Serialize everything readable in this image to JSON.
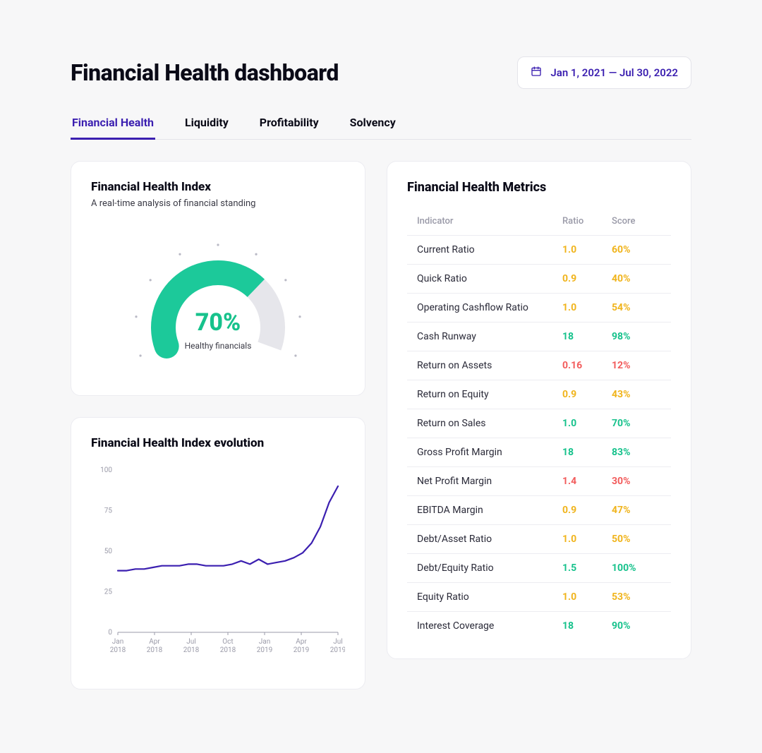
{
  "header": {
    "title": "Financial Health dashboard",
    "date_range": "Jan 1, 2021 — Jul 30, 2022"
  },
  "tabs": [
    {
      "label": "Financial Health",
      "active": true
    },
    {
      "label": "Liquidity",
      "active": false
    },
    {
      "label": "Profitability",
      "active": false
    },
    {
      "label": "Solvency",
      "active": false
    }
  ],
  "gauge_card": {
    "title": "Financial Health Index",
    "subtitle": "A real-time analysis of financial standing",
    "value_pct": 70,
    "value_label": "70%",
    "status_label": "Healthy financials",
    "arc_color": "#1cc99a",
    "track_color": "#e6e6eb",
    "value_color": "#17c28c",
    "tick_color": "#b9b9c5",
    "ticks": 9
  },
  "line_card": {
    "title": "Financial Health Index evolution",
    "yticks": [
      0,
      25,
      50,
      75,
      100
    ],
    "ylim": [
      0,
      100
    ],
    "xlabels": [
      "Jan\n2018",
      "Apr\n2018",
      "Jul\n2018",
      "Oct\n2018",
      "Jan\n2019",
      "Apr\n2019",
      "Jul\n2019"
    ],
    "series": [
      38,
      38,
      39,
      39,
      40,
      41,
      41,
      41,
      42,
      42,
      41,
      41,
      41,
      42,
      44,
      42,
      45,
      42,
      43,
      44,
      46,
      49,
      55,
      65,
      80,
      90
    ],
    "line_color": "#3b1fb0",
    "line_width": 2.2,
    "axis_color": "#9a9aa8",
    "grid_color": "#e4e4ea"
  },
  "metrics": {
    "title": "Financial Health Metrics",
    "columns": [
      "Indicator",
      "Ratio",
      "Score"
    ],
    "color_good": "#17c28c",
    "color_warn": "#f0b41c",
    "color_bad": "#f25c5c",
    "rows": [
      {
        "indicator": "Current Ratio",
        "ratio": "1.0",
        "score": "60%",
        "ratio_k": "warn",
        "score_k": "warn"
      },
      {
        "indicator": "Quick Ratio",
        "ratio": "0.9",
        "score": "40%",
        "ratio_k": "warn",
        "score_k": "warn"
      },
      {
        "indicator": "Operating Cashflow Ratio",
        "ratio": "1.0",
        "score": "54%",
        "ratio_k": "warn",
        "score_k": "warn"
      },
      {
        "indicator": "Cash Runway",
        "ratio": "18",
        "score": "98%",
        "ratio_k": "good",
        "score_k": "good"
      },
      {
        "indicator": "Return on Assets",
        "ratio": "0.16",
        "score": "12%",
        "ratio_k": "bad",
        "score_k": "bad"
      },
      {
        "indicator": "Return on Equity",
        "ratio": "0.9",
        "score": "43%",
        "ratio_k": "warn",
        "score_k": "warn"
      },
      {
        "indicator": "Return on Sales",
        "ratio": "1.0",
        "score": "70%",
        "ratio_k": "good",
        "score_k": "good"
      },
      {
        "indicator": "Gross Profit Margin",
        "ratio": "18",
        "score": "83%",
        "ratio_k": "good",
        "score_k": "good"
      },
      {
        "indicator": "Net Profit Margin",
        "ratio": "1.4",
        "score": "30%",
        "ratio_k": "bad",
        "score_k": "bad"
      },
      {
        "indicator": "EBITDA Margin",
        "ratio": "0.9",
        "score": "47%",
        "ratio_k": "warn",
        "score_k": "warn"
      },
      {
        "indicator": "Debt/Asset Ratio",
        "ratio": "1.0",
        "score": "50%",
        "ratio_k": "warn",
        "score_k": "warn"
      },
      {
        "indicator": "Debt/Equity Ratio",
        "ratio": "1.5",
        "score": "100%",
        "ratio_k": "good",
        "score_k": "good"
      },
      {
        "indicator": "Equity Ratio",
        "ratio": "1.0",
        "score": "53%",
        "ratio_k": "warn",
        "score_k": "warn"
      },
      {
        "indicator": "Interest Coverage",
        "ratio": "18",
        "score": "90%",
        "ratio_k": "good",
        "score_k": "good"
      }
    ]
  }
}
